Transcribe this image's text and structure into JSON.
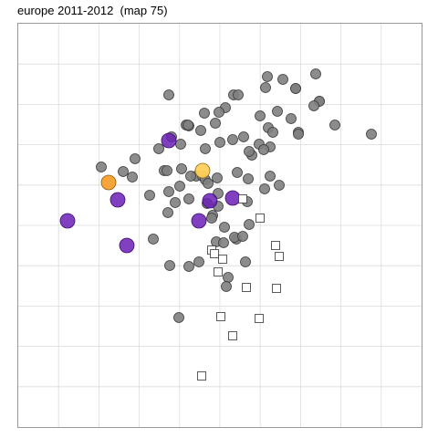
{
  "chart_data": {
    "type": "scatter",
    "title": "europe 2011-2012  (map 75)",
    "xlabel": "",
    "ylabel": "",
    "grid": true,
    "legend": "none",
    "colors": {
      "grey": "#808080",
      "purple": "#6a1fb5",
      "orange": "#f5a030",
      "yellow": "#ffd05a",
      "square_stroke": "#333333",
      "grid": "#dcdcdc",
      "border": "#999999"
    },
    "series": [
      {
        "marker": "circle-grey",
        "x": [
          293,
          310,
          346,
          185,
          256,
          261,
          291,
          324,
          324,
          350,
          350,
          344,
          247,
          224,
          304,
          240,
          285,
          204,
          207,
          319,
          206,
          236,
          294,
          220,
          299,
          367,
          267,
          327,
          327,
          407,
          255,
          188,
          174,
          241,
          198,
          284,
          296,
          225,
          289,
          148,
          111,
          276,
          273,
          180,
          199,
          215,
          238,
          209,
          222,
          183,
          260,
          135,
          145,
          225,
          197,
          296,
          306,
          228,
          185,
          272,
          164,
          192,
          227,
          239,
          207,
          239,
          271,
          184,
          233,
          273,
          290,
          232,
          246,
          237,
          259,
          257,
          168,
          266,
          186,
          207,
          245,
          269,
          250,
          248,
          196,
          218
        ],
        "y": [
          84,
          87,
          81,
          104,
          104,
          104,
          96,
          97,
          97,
          111,
          111,
          116,
          118,
          124,
          122,
          123,
          127,
          137,
          138,
          130,
          137,
          135,
          140,
          143,
          145,
          137,
          150,
          145,
          147,
          147,
          153,
          150,
          163,
          156,
          158,
          158,
          161,
          163,
          164,
          174,
          183,
          170,
          166,
          187,
          185,
          193,
          195,
          193,
          193,
          187,
          189,
          188,
          194,
          197,
          204,
          193,
          203,
          201,
          210,
          196,
          214,
          222,
          223,
          226,
          218,
          212,
          221,
          233,
          236,
          246,
          207,
          239,
          249,
          265,
          262,
          260,
          262,
          259,
          291,
          292,
          266,
          287,
          304,
          314,
          348,
          287
        ]
      },
      {
        "marker": "circle-purple",
        "x": [
          185,
          129,
          230,
          255,
          218,
          74,
          139
        ],
        "y": [
          154,
          219,
          220,
          217,
          242,
          242,
          269
        ]
      },
      {
        "marker": "circle-orange",
        "x": [
          119
        ],
        "y": [
          200
        ]
      },
      {
        "marker": "circle-yellow",
        "x": [
          222
        ],
        "y": [
          187
        ]
      },
      {
        "marker": "square-open",
        "x": [
          266,
          285,
          302,
          232,
          235,
          306,
          244,
          239,
          270,
          303,
          242,
          284,
          255,
          221
        ],
        "y": [
          218,
          239,
          269,
          274,
          278,
          281,
          284,
          298,
          315,
          316,
          347,
          349,
          368,
          412
        ]
      }
    ]
  }
}
